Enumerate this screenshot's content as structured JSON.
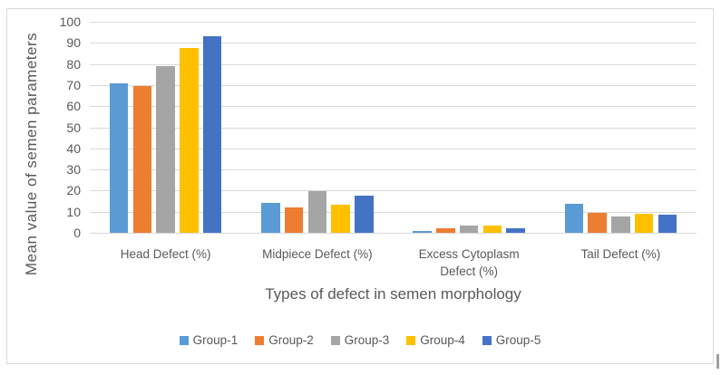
{
  "chart_data": {
    "type": "bar",
    "xlabel": "Types of defect in semen morphology",
    "ylabel": "Mean value of semen parameters",
    "ylim": [
      0,
      100
    ],
    "ytick_step": 10,
    "yticks": [
      0,
      10,
      20,
      30,
      40,
      50,
      60,
      70,
      80,
      90,
      100
    ],
    "grid": true,
    "legend_position": "bottom",
    "categories": [
      "Head Defect (%)",
      "Midpiece Defect (%)",
      "Excess Cytoplasm Defect (%)",
      "Tail Defect (%)"
    ],
    "series": [
      {
        "name": "Group-1",
        "color": "#5B9BD5",
        "values": [
          71,
          14,
          1,
          13.7
        ]
      },
      {
        "name": "Group-2",
        "color": "#ED7D31",
        "values": [
          69.5,
          12.2,
          2,
          9.5
        ]
      },
      {
        "name": "Group-3",
        "color": "#A5A5A5",
        "values": [
          79,
          19.8,
          3.3,
          7.9
        ]
      },
      {
        "name": "Group-4",
        "color": "#FFC000",
        "values": [
          87.5,
          13.4,
          3.4,
          8.9
        ]
      },
      {
        "name": "Group-5",
        "color": "#4472C4",
        "values": [
          93,
          17.6,
          2.1,
          8.4
        ]
      }
    ]
  },
  "colors": {
    "gridline": "#D9D9D9",
    "frame_border": "#D9D9D9",
    "axis_text": "#595959",
    "background": "#FFFFFF",
    "scroll_thumb": "#A0A0A0"
  }
}
